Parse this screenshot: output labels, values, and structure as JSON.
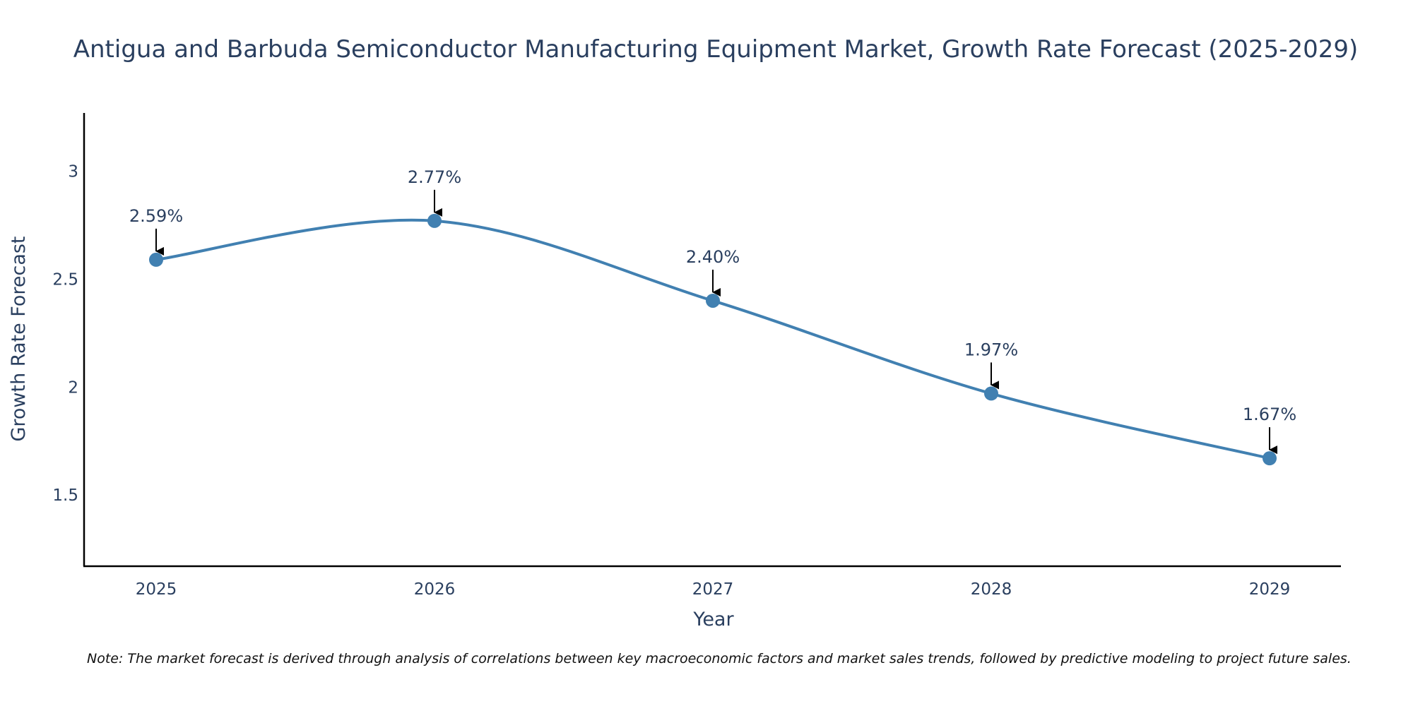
{
  "chart_data": {
    "type": "line",
    "title": "Antigua and Barbuda Semiconductor Manufacturing Equipment Market, Growth Rate Forecast (2025-2029)",
    "xlabel": "Year",
    "ylabel": "Growth Rate Forecast",
    "x": [
      "2025",
      "2026",
      "2027",
      "2028",
      "2029"
    ],
    "series": [
      {
        "name": "Growth Rate Forecast",
        "values": [
          2.59,
          2.77,
          2.4,
          1.97,
          1.67
        ],
        "color": "#4180b1"
      }
    ],
    "annotations": [
      "2.59%",
      "2.77%",
      "2.40%",
      "1.97%",
      "1.67%"
    ],
    "yticks": [
      "1.5",
      "2",
      "2.5",
      "3"
    ],
    "ytick_values": [
      1.5,
      2,
      2.5,
      3
    ],
    "ylim": [
      1.17,
      3.27
    ],
    "grid": false,
    "smoothing": "spline",
    "note": "Note: The market forecast is derived through analysis of correlations between key macroeconomic factors and market sales trends, followed by predictive modeling to project future sales."
  },
  "colors": {
    "line": "#4180b1",
    "marker": "#4180b1",
    "axis": "#000000",
    "text": "#2a3f5f",
    "arrow": "#000000"
  }
}
